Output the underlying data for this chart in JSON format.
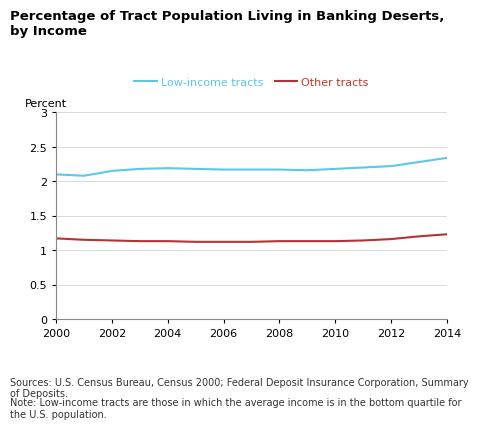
{
  "title": "Percentage of Tract Population Living in Banking Deserts,\nby Income",
  "ylabel": "Percent",
  "legend_labels": [
    "Low-income tracts",
    "Other tracts"
  ],
  "legend_text_colors": [
    "#5bc8e8",
    "#c0392b"
  ],
  "years": [
    2000,
    2001,
    2002,
    2003,
    2004,
    2005,
    2006,
    2007,
    2008,
    2009,
    2010,
    2011,
    2012,
    2013,
    2014
  ],
  "low_income": [
    2.1,
    2.08,
    2.15,
    2.18,
    2.19,
    2.18,
    2.17,
    2.17,
    2.17,
    2.16,
    2.18,
    2.2,
    2.22,
    2.28,
    2.34
  ],
  "other_tracts": [
    1.17,
    1.15,
    1.14,
    1.13,
    1.13,
    1.12,
    1.12,
    1.12,
    1.13,
    1.13,
    1.13,
    1.14,
    1.16,
    1.2,
    1.23
  ],
  "ylim": [
    0,
    3.0
  ],
  "yticks": [
    0,
    0.5,
    1.0,
    1.5,
    2.0,
    2.5,
    3.0
  ],
  "xlim": [
    2000,
    2014
  ],
  "xticks": [
    2000,
    2002,
    2004,
    2006,
    2008,
    2010,
    2012,
    2014
  ],
  "source_text": "Sources: U.S. Census Bureau, Census 2000; Federal Deposit Insurance Corporation, Summary\nof Deposits.",
  "note_text": "Note: Low-income tracts are those in which the average income is in the bottom quartile for\nthe U.S. population.",
  "low_income_color": "#5bc8e8",
  "other_tracts_color": "#b83232",
  "background_color": "#ffffff",
  "line_width": 1.5
}
